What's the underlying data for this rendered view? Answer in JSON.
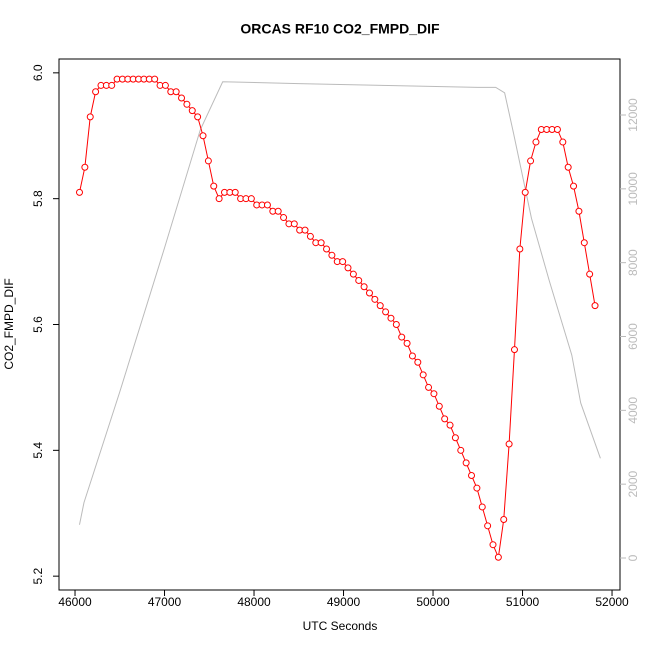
{
  "chart_data": {
    "type": "line",
    "title": "ORCAS RF10 CO2_FMPD_DIF",
    "xlabel": "UTC Seconds",
    "ylabel": "CO2_FMPD_DIF",
    "xlim": [
      45821,
      52089
    ],
    "xticks": [
      46000,
      47000,
      48000,
      49000,
      50000,
      51000,
      52000
    ],
    "ylim": [
      5.178,
      6.022
    ],
    "yticks": [
      5.2,
      5.4,
      5.6,
      5.8,
      {
        "value": 6,
        "label": "6.0"
      }
    ],
    "y2lim": [
      -867,
      13517
    ],
    "y2ticks": [
      0,
      2000,
      4000,
      6000,
      8000,
      10000,
      12000
    ],
    "grid": false,
    "series": [
      {
        "color": "#bbbbbb",
        "axis": "y2",
        "x": [
          46050,
          46100,
          46500,
          47000,
          47400,
          47650,
          48500,
          49500,
          50500,
          50700,
          50800,
          50900,
          51100,
          51300,
          51550,
          51650,
          51870
        ],
        "values": [
          900,
          1500,
          4500,
          8400,
          11600,
          12900,
          12850,
          12800,
          12750,
          12750,
          12600,
          11500,
          9200,
          7500,
          5500,
          4200,
          2700
        ]
      },
      {
        "color": "#ff0000",
        "markers": true,
        "x": [
          46050,
          46110,
          46170,
          46230,
          46290,
          46350,
          46410,
          46470,
          46530,
          46590,
          46650,
          46710,
          46770,
          46830,
          46890,
          46950,
          47010,
          47070,
          47130,
          47190,
          47250,
          47310,
          47370,
          47430,
          47490,
          47550,
          47610,
          47670,
          47730,
          47790,
          47850,
          47910,
          47970,
          48030,
          48090,
          48150,
          48210,
          48270,
          48330,
          48390,
          48450,
          48510,
          48570,
          48630,
          48690,
          48750,
          48810,
          48870,
          48930,
          48990,
          49050,
          49110,
          49170,
          49230,
          49290,
          49350,
          49410,
          49470,
          49530,
          49590,
          49650,
          49710,
          49770,
          49830,
          49890,
          49950,
          50010,
          50070,
          50130,
          50190,
          50250,
          50310,
          50370,
          50430,
          50490,
          50550,
          50610,
          50670,
          50730,
          50790,
          50850,
          50910,
          50970,
          51030,
          51090,
          51150,
          51210,
          51270,
          51330,
          51390,
          51450,
          51510,
          51570,
          51630,
          51690,
          51750,
          51810
        ],
        "values": [
          5.81,
          5.85,
          5.93,
          5.97,
          5.98,
          5.98,
          5.98,
          5.99,
          5.99,
          5.99,
          5.99,
          5.99,
          5.99,
          5.99,
          5.99,
          5.98,
          5.98,
          5.97,
          5.97,
          5.96,
          5.95,
          5.94,
          5.93,
          5.9,
          5.86,
          5.82,
          5.8,
          5.81,
          5.81,
          5.81,
          5.8,
          5.8,
          5.8,
          5.79,
          5.79,
          5.79,
          5.78,
          5.78,
          5.77,
          5.76,
          5.76,
          5.75,
          5.75,
          5.74,
          5.73,
          5.73,
          5.72,
          5.71,
          5.7,
          5.7,
          5.69,
          5.68,
          5.67,
          5.66,
          5.65,
          5.64,
          5.63,
          5.62,
          5.61,
          5.6,
          5.58,
          5.57,
          5.55,
          5.54,
          5.52,
          5.5,
          5.49,
          5.47,
          5.45,
          5.44,
          5.42,
          5.4,
          5.38,
          5.36,
          5.34,
          5.31,
          5.28,
          5.25,
          5.23,
          5.29,
          5.41,
          5.56,
          5.72,
          5.81,
          5.86,
          5.89,
          5.91,
          5.91,
          5.91,
          5.91,
          5.89,
          5.85,
          5.82,
          5.78,
          5.73,
          5.68,
          5.63
        ]
      }
    ]
  }
}
